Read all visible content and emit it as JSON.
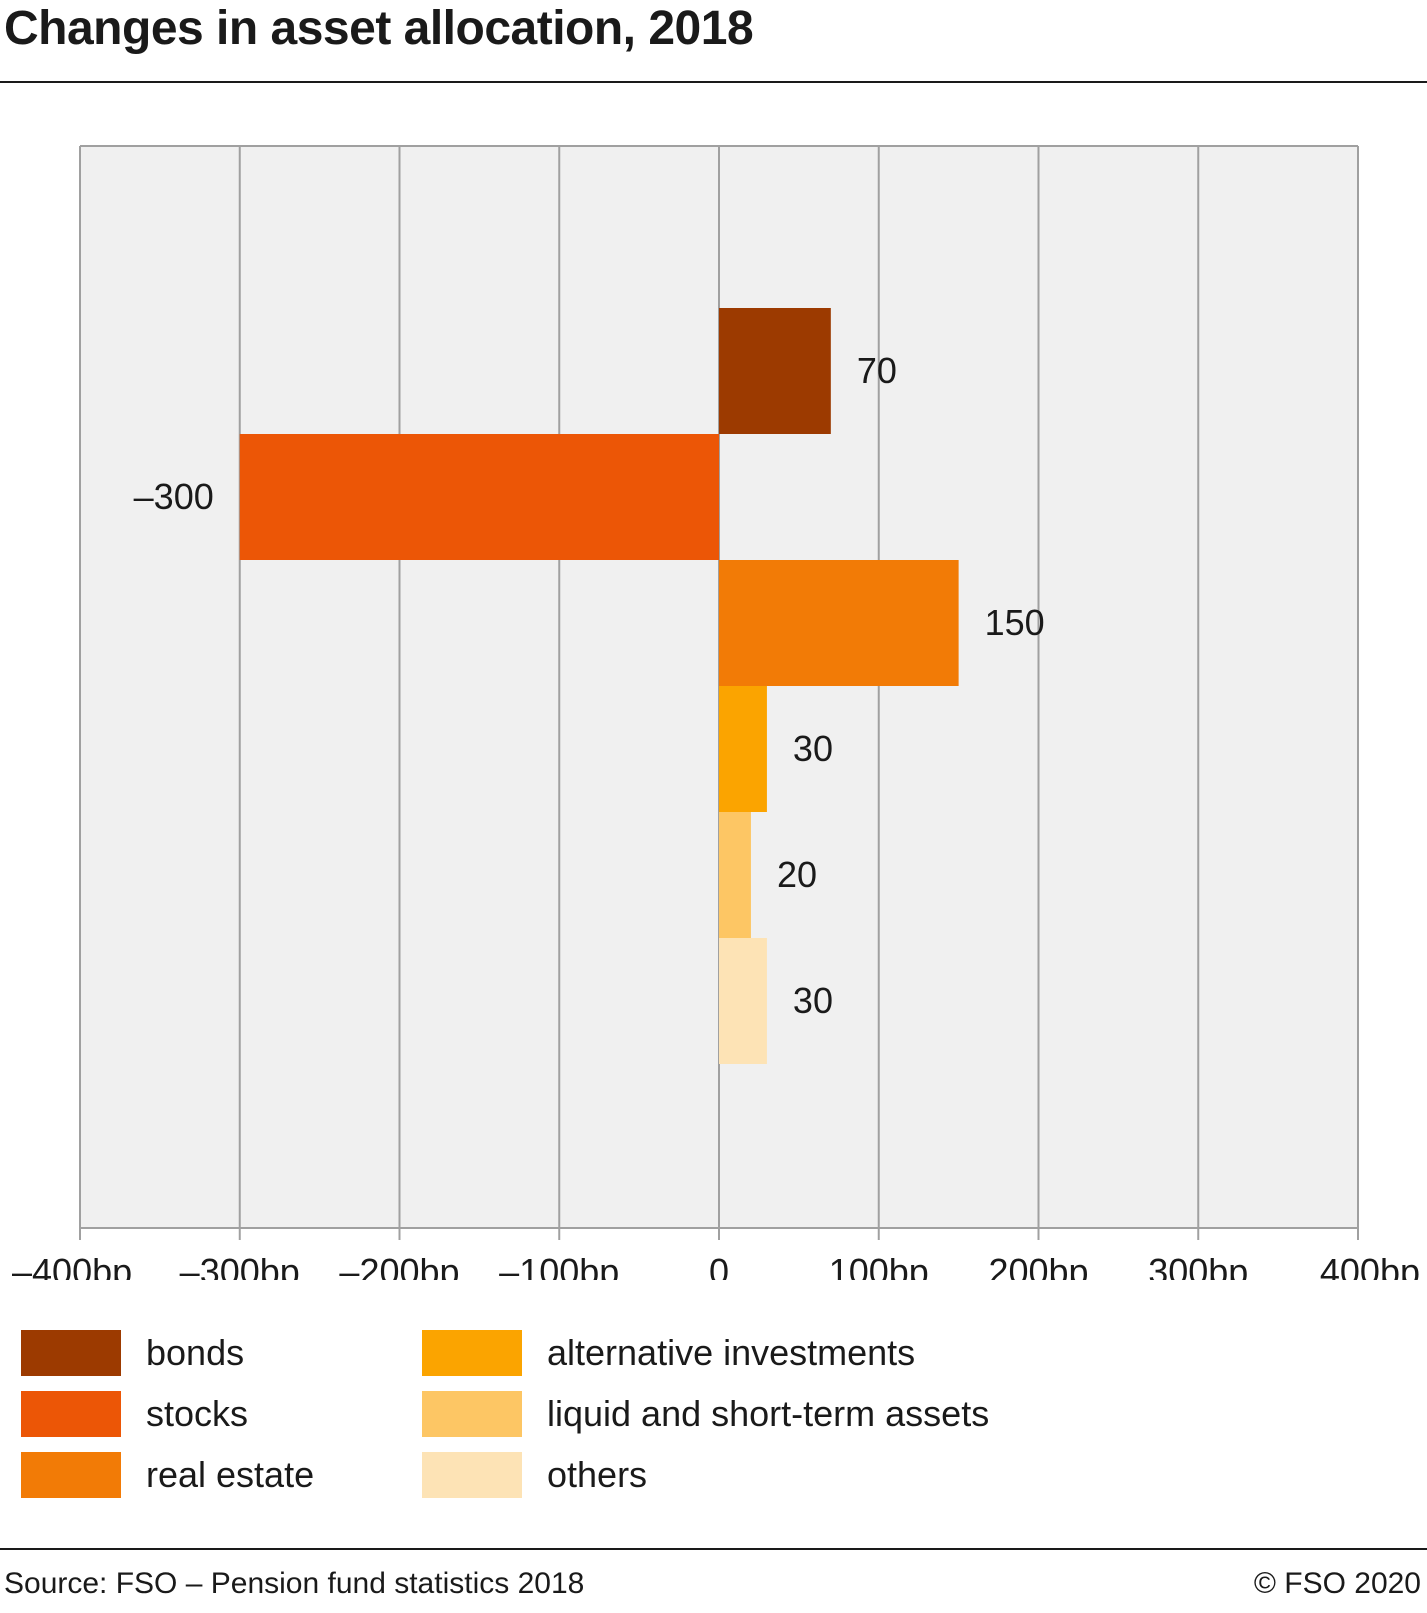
{
  "title": "Changes in asset allocation, 2018",
  "footer": {
    "source": "Source: FSO – Pension fund statistics 2018",
    "copyright": "© FSO 2020"
  },
  "colors": {
    "plot_background": "#f0f0f0",
    "grid": "#a0a0a0",
    "rule": "#1a1a1a"
  },
  "chart_data": {
    "type": "bar",
    "orientation": "horizontal",
    "title": "Changes in asset allocation, 2018",
    "xlabel": "",
    "ylabel": "",
    "xlim": [
      -400,
      400
    ],
    "x_ticks": [
      -400,
      -300,
      -200,
      -100,
      0,
      100,
      200,
      300,
      400
    ],
    "x_tick_labels": [
      "–400bp",
      "–300bp",
      "–200bp",
      "–100bp",
      "0",
      "100bp",
      "200bp",
      "300bp",
      "400bp"
    ],
    "grid": true,
    "legend_position": "bottom",
    "categories": [
      "bonds",
      "stocks",
      "real estate",
      "alternative investments",
      "liquid and short-term assets",
      "others"
    ],
    "values": [
      70,
      -300,
      150,
      30,
      20,
      30
    ],
    "value_labels": [
      "70",
      "–300",
      "150",
      "30",
      "20",
      "30"
    ],
    "colors": [
      "#9c3a00",
      "#ec5606",
      "#f27b06",
      "#fba400",
      "#fdc664",
      "#fde3b5"
    ]
  }
}
